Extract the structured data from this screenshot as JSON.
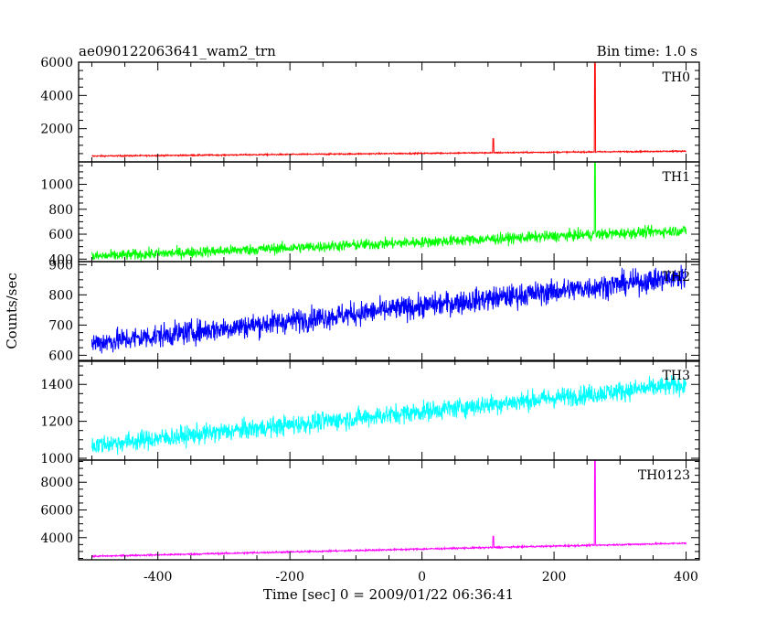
{
  "header": {
    "title": "ae090122063641_wam2_trn",
    "bin_time": "Bin time: 1.0 s"
  },
  "axes": {
    "xlabel": "Time [sec] 0 = 2009/01/22 06:36:41",
    "ylabel": "Counts/sec"
  },
  "chart_data": {
    "type": "line",
    "title": "ae090122063641_wam2_trn",
    "xlabel": "Time [sec] 0 = 2009/01/22 06:36:41",
    "ylabel": "Counts/sec",
    "xlim": [
      -520,
      420
    ],
    "x_ticks": [
      -400,
      -200,
      0,
      200,
      400
    ],
    "panels": [
      {
        "name": "TH0",
        "color": "#ff0000",
        "ylim": [
          0,
          6000
        ],
        "y_ticks": [
          2000,
          4000,
          6000
        ],
        "trend": {
          "x": [
            -500,
            400
          ],
          "y": [
            350,
            650
          ]
        },
        "noise": 40,
        "spikes": [
          {
            "x": 108,
            "y": 1400
          },
          {
            "x": 262,
            "y": 6000
          }
        ]
      },
      {
        "name": "TH1",
        "color": "#00ff00",
        "ylim": [
          380,
          1180
        ],
        "y_ticks": [
          400,
          600,
          800,
          1000
        ],
        "trend": {
          "x": [
            -500,
            400
          ],
          "y": [
            420,
            630
          ]
        },
        "noise": 45,
        "spikes": [
          {
            "x": 262,
            "y": 1180
          }
        ]
      },
      {
        "name": "TH2",
        "color": "#0000ff",
        "ylim": [
          580,
          910
        ],
        "y_ticks": [
          600,
          700,
          800,
          900
        ],
        "trend": {
          "x": [
            -500,
            400
          ],
          "y": [
            640,
            860
          ]
        },
        "noise": 40,
        "spikes": []
      },
      {
        "name": "TH3",
        "color": "#00ffff",
        "ylim": [
          990,
          1530
        ],
        "y_ticks": [
          1000,
          1200,
          1400
        ],
        "trend": {
          "x": [
            -500,
            400
          ],
          "y": [
            1070,
            1400
          ]
        },
        "noise": 55,
        "spikes": []
      },
      {
        "name": "TH0123",
        "color": "#ff00ff",
        "ylim": [
          2400,
          9600
        ],
        "y_ticks": [
          4000,
          6000,
          8000
        ],
        "trend": {
          "x": [
            -500,
            400
          ],
          "y": [
            2650,
            3600
          ]
        },
        "noise": 60,
        "spikes": [
          {
            "x": 108,
            "y": 4100
          },
          {
            "x": 262,
            "y": 9600
          }
        ]
      }
    ]
  }
}
